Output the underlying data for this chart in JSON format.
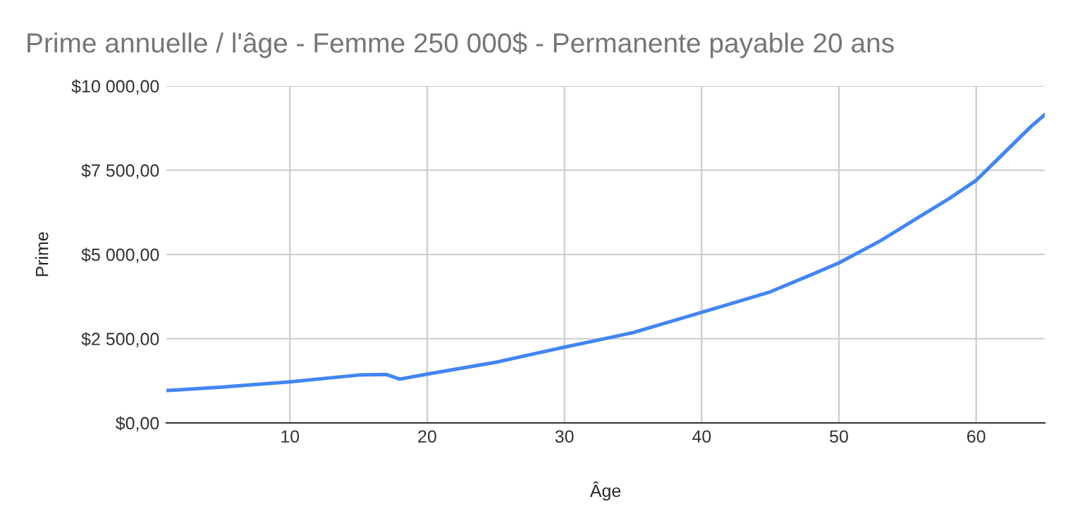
{
  "chart_data": {
    "type": "line",
    "title": "Prime annuelle / l'âge - Femme 250 000$ - Permanente payable 20 ans",
    "xlabel": "Âge",
    "ylabel": "Prime",
    "x": [
      1,
      5,
      10,
      15,
      17,
      18,
      20,
      25,
      30,
      32,
      35,
      40,
      45,
      48,
      50,
      53,
      55,
      58,
      60,
      62,
      64,
      65
    ],
    "series": [
      {
        "color": "#4285f4",
        "values": [
          960,
          1060,
          1220,
          1420,
          1440,
          1300,
          1450,
          1800,
          2250,
          2420,
          2680,
          3280,
          3890,
          4400,
          4750,
          5400,
          5900,
          6650,
          7200,
          8000,
          8800,
          9150
        ]
      }
    ],
    "xlim": [
      1,
      65
    ],
    "xticks": [
      10,
      20,
      30,
      40,
      50,
      60
    ],
    "ylim": [
      0,
      10000
    ],
    "yticks": [
      {
        "value": 0,
        "label": "$0,00"
      },
      {
        "value": 2500,
        "label": "$2 500,00"
      },
      {
        "value": 5000,
        "label": "$5 000,00"
      },
      {
        "value": 7500,
        "label": "$7 500,00"
      },
      {
        "value": 10000,
        "label": "$10 000,00"
      }
    ],
    "grid": true,
    "legend": false,
    "marker": "none",
    "line_style": "solid"
  }
}
